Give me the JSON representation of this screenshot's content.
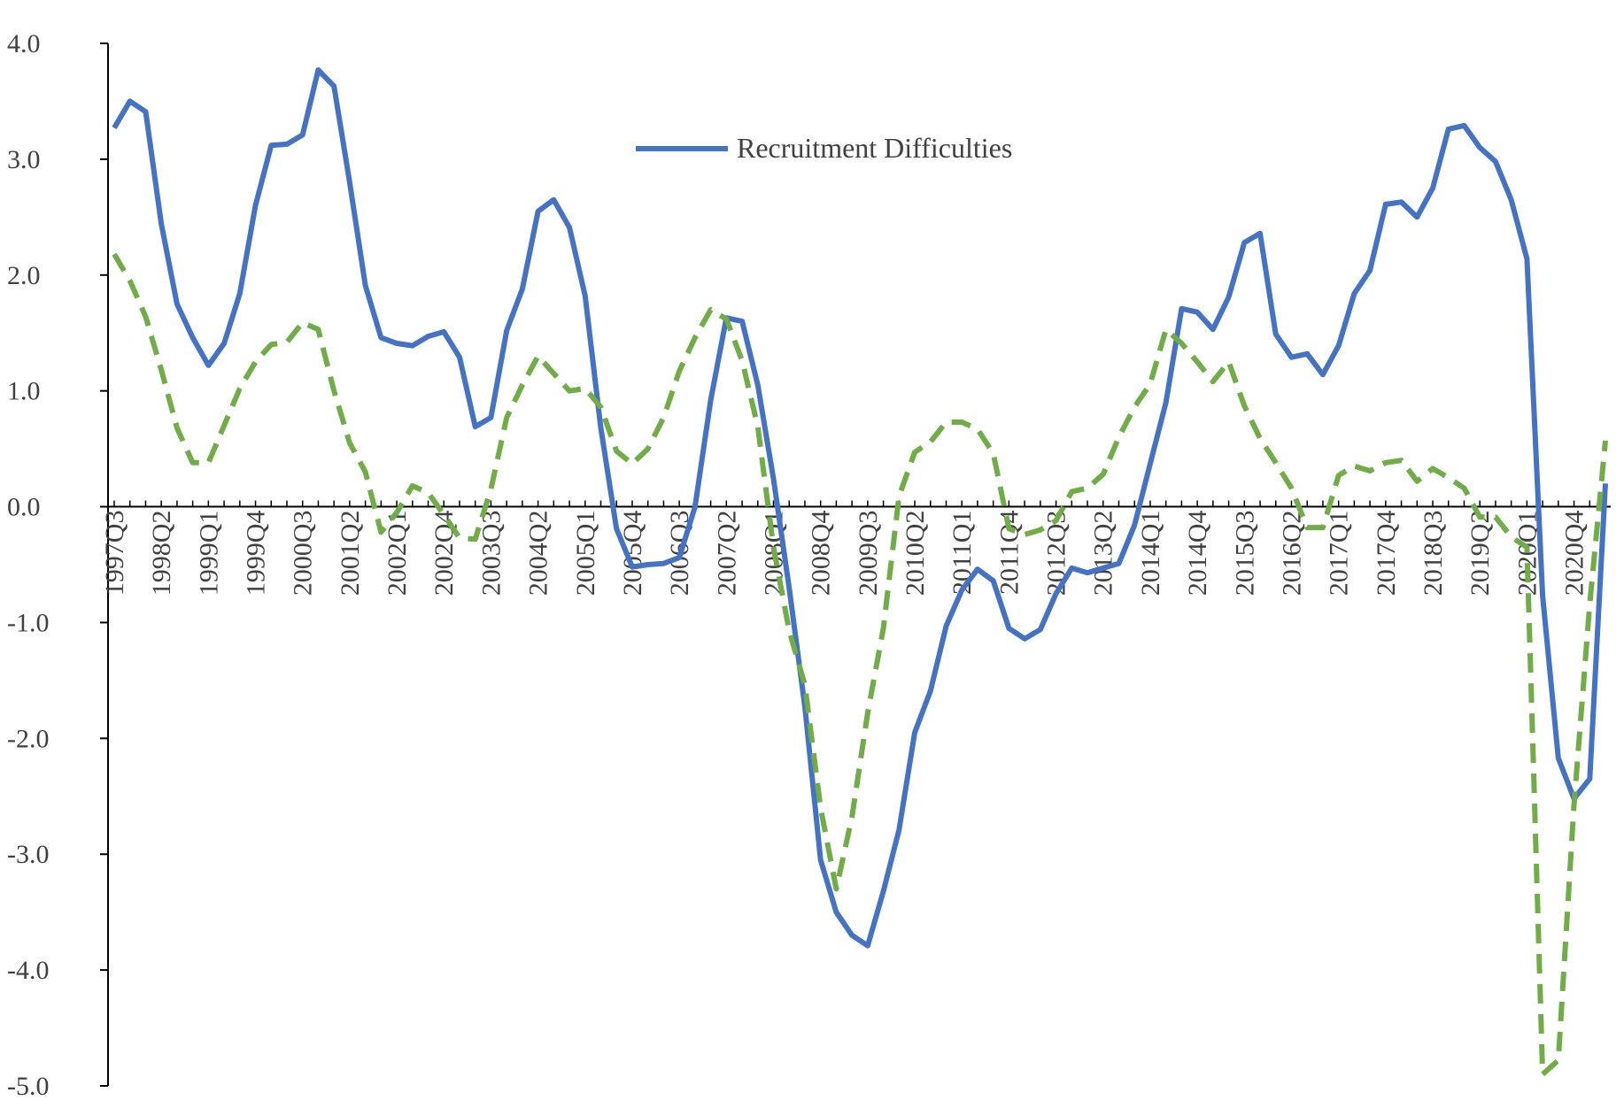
{
  "chart_data": {
    "type": "line",
    "title": "",
    "xlabel": "",
    "ylabel": "",
    "ylim": [
      -5.0,
      4.0
    ],
    "y_ticks": [
      "4.0",
      "3.0",
      "2.0",
      "1.0",
      "0.0",
      "-1.0",
      "-2.0",
      "-3.0",
      "-4.0",
      "-5.0"
    ],
    "x_tick_labels": [
      "1997Q3",
      "1998Q2",
      "1999Q1",
      "1999Q4",
      "2000Q3",
      "2001Q2",
      "2002Q1",
      "2002Q4",
      "2003Q3",
      "2004Q2",
      "2005Q1",
      "2005Q4",
      "2006Q3",
      "2007Q2",
      "2008Q1",
      "2008Q4",
      "2009Q3",
      "2010Q2",
      "2011Q1",
      "2011Q4",
      "2012Q3",
      "2013Q2",
      "2014Q1",
      "2014Q4",
      "2015Q3",
      "2016Q2",
      "2017Q1",
      "2017Q4",
      "2018Q3",
      "2019Q2",
      "2020Q1",
      "2020Q4"
    ],
    "grid": false,
    "legend": {
      "placement": "top-center",
      "entries": [
        "Recruitment Difficulties"
      ]
    },
    "series": [
      {
        "name": "Recruitment Difficulties",
        "color": "#4472C4",
        "style": "solid",
        "values": [
          3.27,
          3.5,
          3.41,
          2.44,
          1.75,
          1.46,
          1.22,
          1.41,
          1.84,
          2.6,
          3.12,
          3.13,
          3.21,
          3.77,
          3.63,
          2.8,
          1.91,
          1.46,
          1.41,
          1.39,
          1.47,
          1.51,
          1.29,
          0.69,
          0.77,
          1.52,
          1.88,
          2.55,
          2.65,
          2.41,
          1.82,
          0.68,
          -0.19,
          -0.52,
          -0.5,
          -0.49,
          -0.44,
          0.0,
          0.92,
          1.63,
          1.6,
          1.05,
          0.24,
          -0.7,
          -1.73,
          -3.05,
          -3.5,
          -3.7,
          -3.79,
          -3.32,
          -2.79,
          -1.95,
          -1.59,
          -1.03,
          -0.72,
          -0.54,
          -0.64,
          -1.05,
          -1.14,
          -1.06,
          -0.75,
          -0.53,
          -0.57,
          -0.53,
          -0.49,
          -0.16,
          0.37,
          0.9,
          1.71,
          1.68,
          1.53,
          1.81,
          2.28,
          2.36,
          1.49,
          1.29,
          1.32,
          1.14,
          1.39,
          1.84,
          2.04,
          2.61,
          2.63,
          2.5,
          2.75,
          3.26,
          3.29,
          3.1,
          2.98,
          2.65,
          2.14,
          -0.77,
          -2.17,
          -2.52,
          -2.35,
          0.2
        ]
      },
      {
        "name": "",
        "color": "#70AD47",
        "style": "dashed",
        "values": [
          2.18,
          1.95,
          1.64,
          1.18,
          0.68,
          0.38,
          0.38,
          0.7,
          1.02,
          1.25,
          1.4,
          1.42,
          1.59,
          1.53,
          1.0,
          0.55,
          0.3,
          -0.22,
          -0.05,
          0.18,
          0.12,
          -0.07,
          -0.27,
          -0.28,
          0.15,
          0.77,
          1.05,
          1.3,
          1.15,
          1.0,
          1.02,
          0.86,
          0.48,
          0.37,
          0.5,
          0.77,
          1.17,
          1.46,
          1.7,
          1.62,
          1.26,
          0.69,
          -0.35,
          -1.07,
          -1.54,
          -2.6,
          -3.3,
          -2.68,
          -1.78,
          -1.05,
          0.09,
          0.47,
          0.56,
          0.73,
          0.73,
          0.67,
          0.46,
          -0.19,
          -0.24,
          -0.2,
          -0.12,
          0.13,
          0.16,
          0.28,
          0.6,
          0.86,
          1.06,
          1.53,
          1.41,
          1.25,
          1.08,
          1.25,
          0.87,
          0.59,
          0.38,
          0.16,
          -0.18,
          -0.18,
          0.27,
          0.35,
          0.31,
          0.38,
          0.4,
          0.22,
          0.33,
          0.25,
          0.16,
          -0.09,
          -0.09,
          -0.26,
          -0.35,
          -4.9,
          -4.78,
          -2.58,
          -0.84,
          0.57
        ]
      }
    ]
  }
}
